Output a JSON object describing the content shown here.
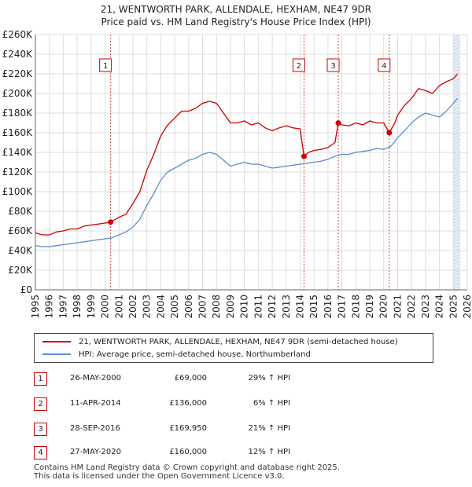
{
  "title": "21, WENTWORTH PARK, ALLENDALE, HEXHAM, NE47 9DR",
  "subtitle": "Price paid vs. HM Land Registry's House Price Index (HPI)",
  "legend": {
    "property": "21, WENTWORTH PARK, ALLENDALE, HEXHAM, NE47 9DR (semi-detached house)",
    "hpi": "HPI: Average price, semi-detached house, Northumberland"
  },
  "colors": {
    "property": "#cc0000",
    "hpi": "#5b8ccc",
    "marker_line": "#cc0000",
    "grid": "#dddddd",
    "shade": "#e8eef8"
  },
  "sales": [
    {
      "num": "1",
      "date": "26-MAY-2000",
      "price": "£69,000",
      "hpi": "29% ↑ HPI"
    },
    {
      "num": "2",
      "date": "11-APR-2014",
      "price": "£136,000",
      "hpi": "6% ↑ HPI"
    },
    {
      "num": "3",
      "date": "28-SEP-2016",
      "price": "£169,950",
      "hpi": "21% ↑ HPI"
    },
    {
      "num": "4",
      "date": "27-MAY-2020",
      "price": "£160,000",
      "hpi": "12% ↑ HPI"
    }
  ],
  "footer": {
    "line1": "Contains HM Land Registry data © Crown copyright and database right 2025.",
    "line2": "This data is licensed under the Open Government Licence v3.0."
  },
  "chart_data": {
    "type": "line",
    "title": "21, WENTWORTH PARK, ALLENDALE, HEXHAM, NE47 9DR",
    "subtitle": "Price paid vs. HM Land Registry's House Price Index (HPI)",
    "xlabel": "",
    "ylabel": "",
    "xlim": [
      1995,
      2026
    ],
    "ylim": [
      0,
      260000
    ],
    "y_ticks": [
      0,
      20000,
      40000,
      60000,
      80000,
      100000,
      120000,
      140000,
      160000,
      180000,
      200000,
      220000,
      240000,
      260000
    ],
    "y_tick_labels": [
      "£0",
      "£20K",
      "£40K",
      "£60K",
      "£80K",
      "£100K",
      "£120K",
      "£140K",
      "£160K",
      "£180K",
      "£200K",
      "£220K",
      "£240K",
      "£260K"
    ],
    "x_ticks": [
      1995,
      1996,
      1997,
      1998,
      1999,
      2000,
      2001,
      2002,
      2003,
      2004,
      2005,
      2006,
      2007,
      2008,
      2009,
      2010,
      2011,
      2012,
      2013,
      2014,
      2015,
      2016,
      2017,
      2018,
      2019,
      2020,
      2021,
      2022,
      2023,
      2024,
      2025,
      2026
    ],
    "x_tick_labels": [
      "1995",
      "1996",
      "1997",
      "1998",
      "1999",
      "2000",
      "2001",
      "2002",
      "2003",
      "2004",
      "2005",
      "2006",
      "2007",
      "2008",
      "2009",
      "2010",
      "2011",
      "2012",
      "2013",
      "2014",
      "2015",
      "2016",
      "2017",
      "2018",
      "2019",
      "2020",
      "2021",
      "2022",
      "2023",
      "2024",
      "2025",
      "2026"
    ],
    "shaded_future_from": 2025.0,
    "shaded_future_to": 2025.5,
    "grid": true,
    "sale_markers": [
      {
        "label": "1",
        "x": 2000.4,
        "y": 69000
      },
      {
        "label": "2",
        "x": 2014.28,
        "y": 136000
      },
      {
        "label": "3",
        "x": 2016.74,
        "y": 169950
      },
      {
        "label": "4",
        "x": 2020.4,
        "y": 160000
      }
    ],
    "series": [
      {
        "name": "21, WENTWORTH PARK, ALLENDALE, HEXHAM, NE47 9DR (semi-detached house)",
        "color": "#cc0000",
        "x": [
          1995,
          1995.5,
          1996,
          1996.5,
          1997,
          1997.5,
          1998,
          1998.5,
          1999,
          1999.5,
          2000,
          2000.4,
          2001,
          2001.5,
          2002,
          2002.5,
          2003,
          2003.5,
          2004,
          2004.5,
          2005,
          2005.5,
          2006,
          2006.5,
          2007,
          2007.5,
          2008,
          2008.5,
          2009,
          2009.5,
          2010,
          2010.5,
          2011,
          2011.5,
          2012,
          2012.5,
          2013,
          2013.5,
          2014,
          2014.28,
          2014.6,
          2015,
          2015.5,
          2016,
          2016.5,
          2016.74,
          2017,
          2017.5,
          2018,
          2018.5,
          2019,
          2019.5,
          2020,
          2020.4,
          2020.8,
          2021,
          2021.5,
          2022,
          2022.5,
          2023,
          2023.5,
          2024,
          2024.5,
          2025,
          2025.3
        ],
        "y": [
          58000,
          56000,
          56000,
          59000,
          60000,
          62000,
          62000,
          65000,
          66000,
          67000,
          68000,
          69000,
          74000,
          77000,
          88000,
          100000,
          122000,
          138000,
          157000,
          168000,
          175000,
          182000,
          182000,
          185000,
          190000,
          192000,
          190000,
          180000,
          170000,
          170000,
          172000,
          168000,
          170000,
          165000,
          162000,
          165000,
          167000,
          165000,
          164000,
          136000,
          140000,
          142000,
          143000,
          145000,
          150000,
          169950,
          168000,
          167000,
          170000,
          168000,
          172000,
          170000,
          170000,
          160000,
          170000,
          178000,
          188000,
          195000,
          205000,
          203000,
          200000,
          208000,
          212000,
          215000,
          220000
        ]
      },
      {
        "name": "HPI: Average price, semi-detached house, Northumberland",
        "color": "#5b8ccc",
        "x": [
          1995,
          1995.5,
          1996,
          1996.5,
          1997,
          1997.5,
          1998,
          1998.5,
          1999,
          1999.5,
          2000,
          2000.5,
          2001,
          2001.5,
          2002,
          2002.5,
          2003,
          2003.5,
          2004,
          2004.5,
          2005,
          2005.5,
          2006,
          2006.5,
          2007,
          2007.5,
          2008,
          2008.5,
          2009,
          2009.5,
          2010,
          2010.5,
          2011,
          2011.5,
          2012,
          2012.5,
          2013,
          2013.5,
          2014,
          2014.5,
          2015,
          2015.5,
          2016,
          2016.5,
          2017,
          2017.5,
          2018,
          2018.5,
          2019,
          2019.5,
          2020,
          2020.5,
          2021,
          2021.5,
          2022,
          2022.5,
          2023,
          2023.5,
          2024,
          2024.5,
          2025,
          2025.3
        ],
        "y": [
          45000,
          44000,
          44000,
          45000,
          46000,
          47000,
          48000,
          49000,
          50000,
          51000,
          52000,
          53000,
          56000,
          59000,
          64000,
          72000,
          86000,
          98000,
          112000,
          120000,
          124000,
          128000,
          132000,
          134000,
          138000,
          140000,
          138000,
          132000,
          126000,
          128000,
          130000,
          128000,
          128000,
          126000,
          124000,
          125000,
          126000,
          127000,
          128000,
          129000,
          130000,
          131000,
          133000,
          136000,
          138000,
          138000,
          140000,
          141000,
          142000,
          144000,
          143000,
          146000,
          155000,
          162000,
          170000,
          176000,
          180000,
          178000,
          176000,
          182000,
          190000,
          195000
        ]
      }
    ]
  }
}
